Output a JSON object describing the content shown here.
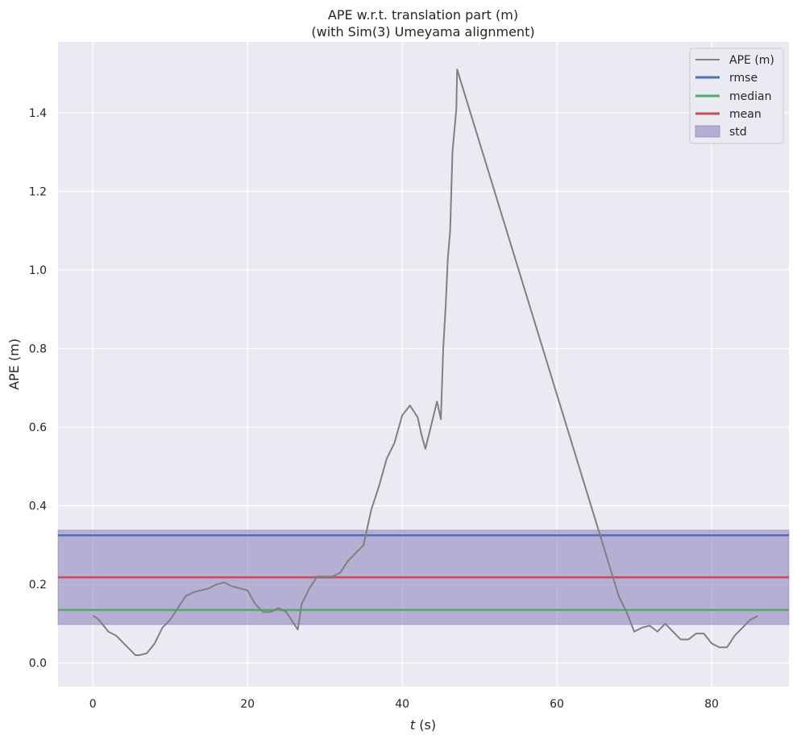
{
  "chart_data": {
    "type": "line",
    "title": "APE w.r.t. translation part (m)",
    "subtitle": "(with Sim(3) Umeyama alignment)",
    "xlabel_italic": "t",
    "xlabel_unit": "(s)",
    "ylabel": "APE (m)",
    "xlim": [
      -4.5,
      90
    ],
    "ylim": [
      -0.06,
      1.58
    ],
    "xticks": [
      0,
      20,
      40,
      60,
      80
    ],
    "xtick_labels": [
      "0",
      "20",
      "40",
      "60",
      "80"
    ],
    "yticks": [
      0.0,
      0.2,
      0.4,
      0.6,
      0.8,
      1.0,
      1.2,
      1.4
    ],
    "ytick_labels": [
      "0.0",
      "0.2",
      "0.4",
      "0.6",
      "0.8",
      "1.0",
      "1.2",
      "1.4"
    ],
    "grid": true,
    "legend_position": "top-right",
    "legend": [
      "APE (m)",
      "rmse",
      "median",
      "mean",
      "std"
    ],
    "series": [
      {
        "name": "APE (m)",
        "color": "#808080",
        "x": [
          0,
          0.5,
          1,
          2,
          3,
          4,
          5,
          5.5,
          6,
          7,
          8,
          9,
          10,
          11,
          12,
          13,
          14,
          15,
          16,
          17,
          18,
          19,
          20,
          21,
          22,
          23,
          24,
          25,
          26,
          26.5,
          27,
          28,
          29,
          30,
          31,
          32,
          33,
          34,
          35,
          36,
          37,
          38,
          39,
          40,
          41,
          42,
          42.5,
          43,
          44,
          44.5,
          45,
          45.3,
          45.6,
          45.9,
          46.2,
          46.5,
          47,
          47.1,
          68,
          69,
          70,
          71,
          72,
          73,
          74,
          75,
          76,
          77,
          78,
          79,
          80,
          81,
          82,
          83,
          84,
          85,
          86
        ],
        "y": [
          0.12,
          0.115,
          0.105,
          0.08,
          0.07,
          0.05,
          0.03,
          0.02,
          0.02,
          0.025,
          0.05,
          0.09,
          0.11,
          0.14,
          0.17,
          0.18,
          0.185,
          0.19,
          0.2,
          0.205,
          0.195,
          0.19,
          0.185,
          0.15,
          0.13,
          0.13,
          0.14,
          0.13,
          0.1,
          0.085,
          0.15,
          0.19,
          0.22,
          0.22,
          0.22,
          0.23,
          0.26,
          0.28,
          0.3,
          0.39,
          0.45,
          0.52,
          0.56,
          0.63,
          0.655,
          0.625,
          0.58,
          0.545,
          0.625,
          0.665,
          0.62,
          0.8,
          0.9,
          1.03,
          1.1,
          1.3,
          1.41,
          1.51,
          0.17,
          0.13,
          0.08,
          0.09,
          0.095,
          0.08,
          0.1,
          0.08,
          0.06,
          0.06,
          0.075,
          0.075,
          0.05,
          0.04,
          0.04,
          0.07,
          0.09,
          0.11,
          0.12
        ]
      }
    ],
    "stats": {
      "rmse": {
        "label": "rmse",
        "value": 0.325,
        "color": "#4c72b0"
      },
      "median": {
        "label": "median",
        "value": 0.135,
        "color": "#55a868"
      },
      "mean": {
        "label": "mean",
        "value": 0.218,
        "color": "#c44e52"
      },
      "std": {
        "label": "std",
        "low": 0.098,
        "high": 0.338,
        "color": "#8172b3"
      }
    }
  }
}
